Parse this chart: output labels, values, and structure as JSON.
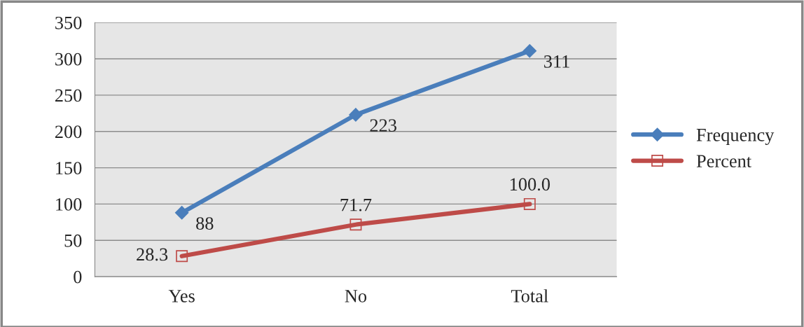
{
  "chart_data": {
    "type": "line",
    "categories": [
      "Yes",
      "No",
      "Total"
    ],
    "series": [
      {
        "name": "Frequency",
        "color": "#4a7ebb",
        "marker": "diamond",
        "values": [
          88,
          223,
          311
        ]
      },
      {
        "name": "Percent",
        "color": "#be4b48",
        "marker": "square",
        "values": [
          28.3,
          71.7,
          100.0
        ],
        "value_labels": [
          "28.3",
          "71.7",
          "100.0"
        ]
      }
    ],
    "data_labels": true,
    "ylim": [
      0,
      350
    ],
    "yticks": [
      0,
      50,
      100,
      150,
      200,
      250,
      300,
      350
    ],
    "grid": "y",
    "legend": "right"
  }
}
